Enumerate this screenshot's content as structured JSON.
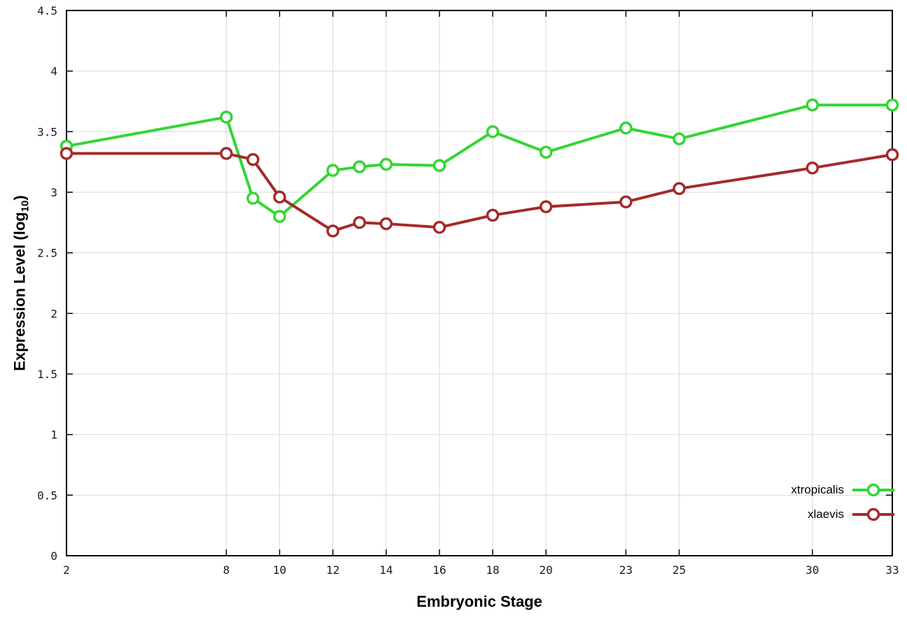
{
  "chart_data": {
    "type": "line",
    "title": "",
    "xlabel": "Embryonic Stage",
    "ylabel": "Expression Level (log10)",
    "ylabel_parts": {
      "prefix": "Expression Level (log",
      "sub": "10",
      "suffix": ")"
    },
    "x": [
      2,
      8,
      9,
      10,
      12,
      13,
      14,
      16,
      18,
      20,
      23,
      25,
      30,
      33
    ],
    "xticks": [
      2,
      8,
      10,
      12,
      14,
      16,
      18,
      20,
      23,
      25,
      30,
      33
    ],
    "yticks": [
      0,
      0.5,
      1,
      1.5,
      2,
      2.5,
      3,
      3.5,
      4,
      4.5
    ],
    "xlim": [
      2,
      33
    ],
    "ylim": [
      0,
      4.5
    ],
    "grid": true,
    "legend_position": "bottom-right",
    "background_color": "#ffffff",
    "grid_color": "#d9d9d9",
    "series": [
      {
        "name": "xtropicalis",
        "color": "#33d633",
        "values": [
          3.38,
          3.62,
          2.95,
          2.8,
          3.18,
          3.21,
          3.23,
          3.22,
          3.5,
          3.33,
          3.53,
          3.44,
          3.72,
          3.72
        ]
      },
      {
        "name": "xlaevis",
        "color": "#a52a2a",
        "values": [
          3.32,
          3.32,
          3.27,
          2.96,
          2.68,
          2.75,
          2.74,
          2.71,
          2.81,
          2.88,
          2.92,
          3.03,
          3.2,
          3.31
        ]
      }
    ]
  }
}
